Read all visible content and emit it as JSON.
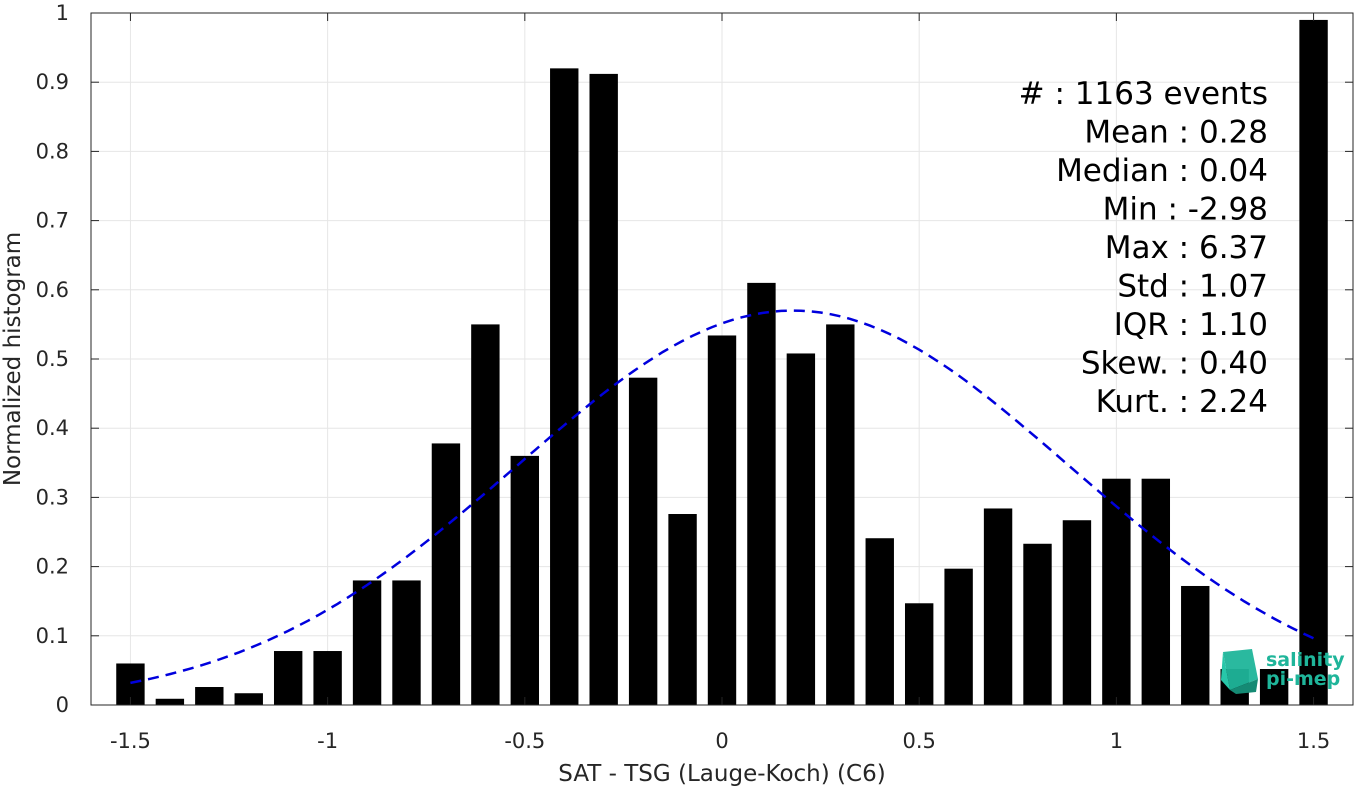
{
  "chart_data": {
    "type": "bar",
    "xlabel": "SAT - TSG (Lauge-Koch) (C6)",
    "ylabel": "Normalized histogram",
    "xlim": [
      -1.6,
      1.6
    ],
    "ylim": [
      0,
      1
    ],
    "grid": true,
    "bar_color": "#000000",
    "x_ticks": [
      "-1.5",
      "-1",
      "-0.5",
      "0",
      "0.5",
      "1",
      "1.5"
    ],
    "y_ticks": [
      "0",
      "0.1",
      "0.2",
      "0.3",
      "0.4",
      "0.5",
      "0.6",
      "0.7",
      "0.8",
      "0.9",
      "1"
    ],
    "x": [
      -1.5,
      -1.4,
      -1.3,
      -1.2,
      -1.1,
      -1.0,
      -0.9,
      -0.8,
      -0.7,
      -0.6,
      -0.5,
      -0.4,
      -0.3,
      -0.2,
      -0.1,
      0.0,
      0.1,
      0.2,
      0.3,
      0.4,
      0.5,
      0.6,
      0.7,
      0.8,
      0.9,
      1.0,
      1.1,
      1.2,
      1.3,
      1.4,
      1.5
    ],
    "values": [
      0.06,
      0.009,
      0.026,
      0.017,
      0.078,
      0.078,
      0.18,
      0.18,
      0.378,
      0.55,
      0.36,
      0.92,
      0.912,
      0.473,
      0.276,
      0.534,
      0.61,
      0.508,
      0.55,
      0.241,
      0.147,
      0.197,
      0.284,
      0.233,
      0.267,
      0.327,
      0.327,
      0.172,
      0.052,
      0.052,
      0.99
    ],
    "fit_curve": {
      "style": "dashed",
      "color": "#0000dd",
      "mean": 0.18,
      "std": 0.7,
      "peak": 0.57,
      "x_range": [
        -1.5,
        1.5
      ]
    },
    "stats": [
      {
        "label": "#  : 1163 events"
      },
      {
        "label": "Mean : 0.28"
      },
      {
        "label": "Median : 0.04"
      },
      {
        "label": "Min : -2.98"
      },
      {
        "label": "Max : 6.37"
      },
      {
        "label": "Std : 1.07"
      },
      {
        "label": "IQR : 1.10"
      },
      {
        "label": "Skew. : 0.40"
      },
      {
        "label": "Kurt. : 2.24"
      }
    ]
  },
  "logo": {
    "line1": "salinity",
    "line2": "pi-mep",
    "color": "#1fb59a"
  }
}
